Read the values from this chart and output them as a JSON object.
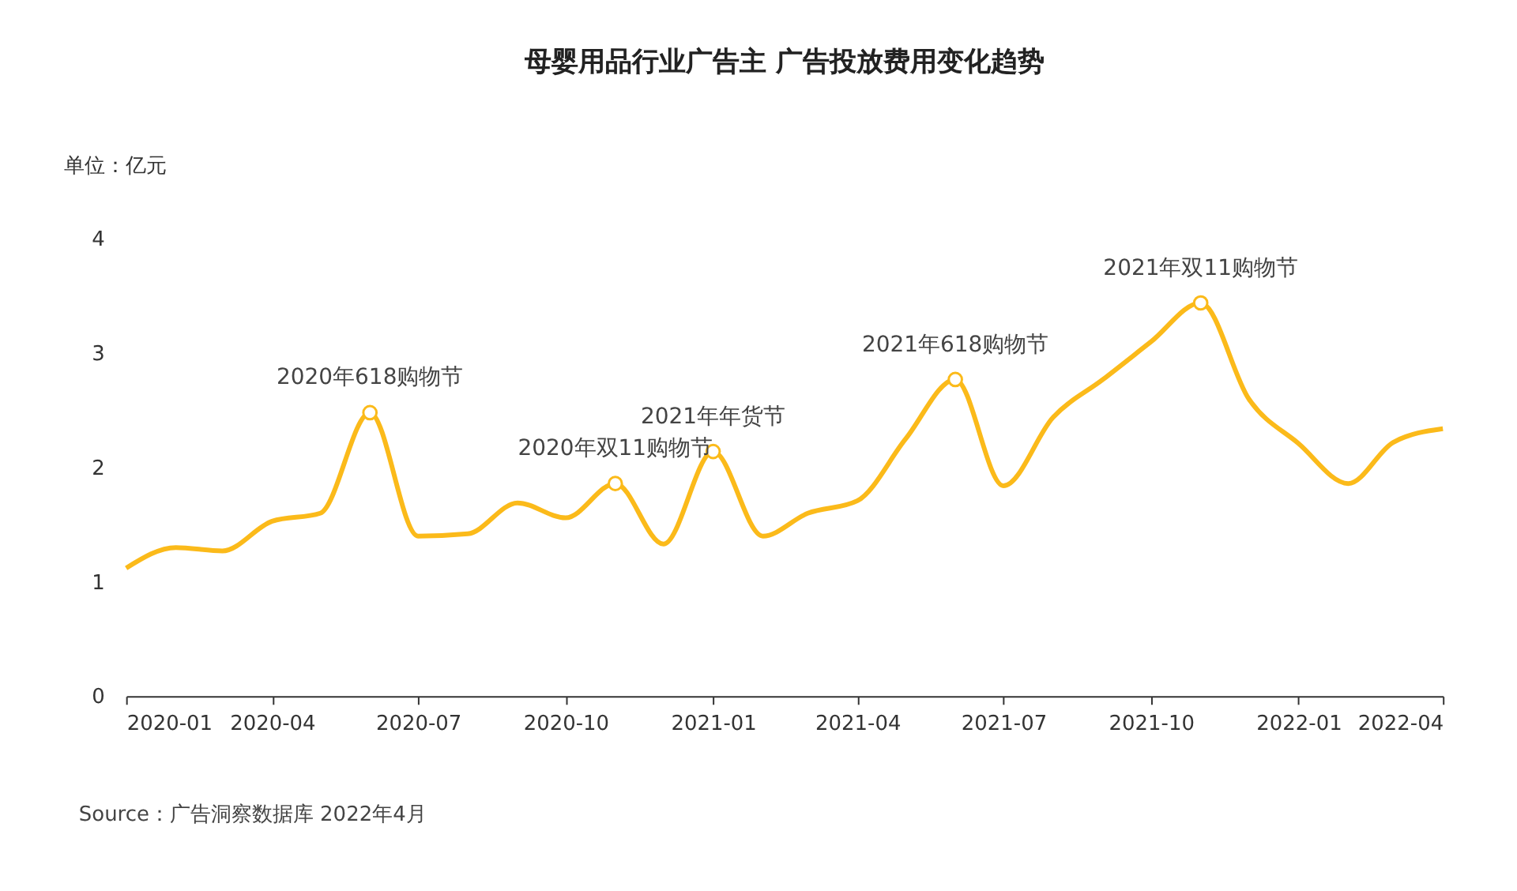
{
  "chart_data": {
    "type": "line",
    "title": "母婴用品行业广告主 广告投放费用变化趋势",
    "ylabel": "单位：亿元",
    "x": [
      "2020-01",
      "2020-02",
      "2020-03",
      "2020-04",
      "2020-05",
      "2020-06",
      "2020-07",
      "2020-08",
      "2020-09",
      "2020-10",
      "2020-11",
      "2020-12",
      "2021-01",
      "2021-02",
      "2021-03",
      "2021-04",
      "2021-05",
      "2021-06",
      "2021-07",
      "2021-08",
      "2021-09",
      "2021-10",
      "2021-11",
      "2021-12",
      "2022-01",
      "2022-02",
      "2022-03",
      "2022-04"
    ],
    "series": [
      {
        "color": "#fbba1a",
        "values": [
          1.12,
          1.3,
          1.27,
          1.53,
          1.6,
          2.48,
          1.4,
          1.42,
          1.69,
          1.56,
          1.86,
          1.33,
          2.14,
          1.4,
          1.6,
          1.71,
          2.25,
          2.77,
          1.84,
          2.44,
          2.77,
          3.1,
          3.44,
          2.6,
          2.21,
          1.86,
          2.22,
          2.34
        ]
      }
    ],
    "xlim": [
      "2020-01",
      "2022-04"
    ],
    "xticks": [
      "2020-01",
      "2020-04",
      "2020-07",
      "2020-10",
      "2021-01",
      "2021-04",
      "2021-07",
      "2021-10",
      "2022-01",
      "2022-04"
    ],
    "ylim": [
      0,
      4
    ],
    "yticks": [
      0,
      1,
      2,
      3,
      4
    ],
    "grid": false,
    "marker": "none",
    "line_style": "solid",
    "annotations": [
      {
        "text": "2020年618购物节",
        "x": "2020-06",
        "y": 2.48
      },
      {
        "text": "2020年双11购物节",
        "x": "2020-11",
        "y": 1.86
      },
      {
        "text": "2021年年货节",
        "x": "2021-01",
        "y": 2.14
      },
      {
        "text": "2021年618购物节",
        "x": "2021-06",
        "y": 2.77
      },
      {
        "text": "2021年双11购物节",
        "x": "2021-11",
        "y": 3.44
      },
      "Source：广告洞察数据库 2022年4月"
    ]
  }
}
